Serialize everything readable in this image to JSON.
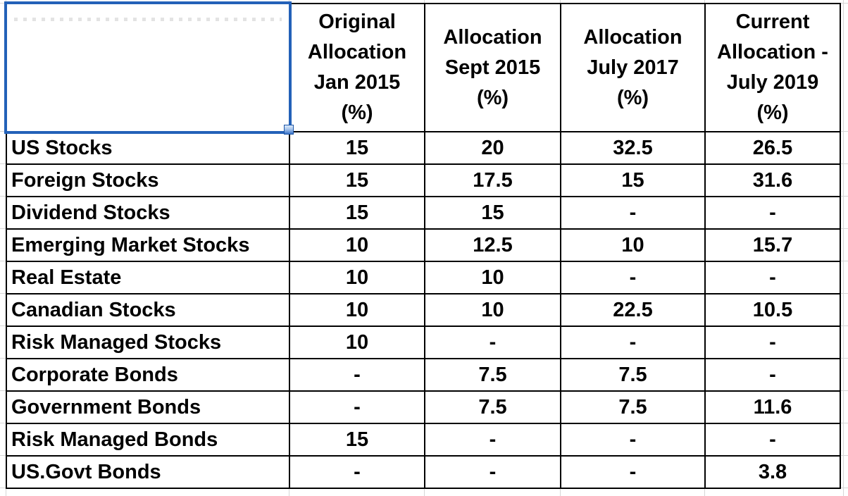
{
  "table": {
    "corner_label": "",
    "columns": [
      "Original\nAllocation\nJan 2015\n(%)",
      "Allocation\nSept 2015\n(%)",
      "Allocation\nJuly 2017\n(%)",
      "Current\nAllocation -\nJuly 2019\n(%)"
    ],
    "rows": [
      {
        "label": "US Stocks",
        "values": [
          "15",
          "20",
          "32.5",
          "26.5"
        ]
      },
      {
        "label": "Foreign Stocks",
        "values": [
          "15",
          "17.5",
          "15",
          "31.6"
        ]
      },
      {
        "label": "Dividend Stocks",
        "values": [
          "15",
          "15",
          "-",
          "-"
        ]
      },
      {
        "label": "Emerging Market Stocks",
        "values": [
          "10",
          "12.5",
          "10",
          "15.7"
        ]
      },
      {
        "label": "Real Estate",
        "values": [
          "10",
          "10",
          "-",
          "-"
        ]
      },
      {
        "label": "Canadian Stocks",
        "values": [
          "10",
          "10",
          "22.5",
          "10.5"
        ]
      },
      {
        "label": "Risk Managed Stocks",
        "values": [
          "10",
          "-",
          "-",
          "-"
        ]
      },
      {
        "label": "Corporate Bonds",
        "values": [
          "-",
          "7.5",
          "7.5",
          "-"
        ]
      },
      {
        "label": "Government Bonds",
        "values": [
          "-",
          "7.5",
          "7.5",
          "11.6"
        ]
      },
      {
        "label": "Risk Managed Bonds",
        "values": [
          "15",
          "-",
          "-",
          "-"
        ]
      },
      {
        "label": "US.Govt Bonds",
        "values": [
          "-",
          "-",
          "-",
          "3.8"
        ]
      }
    ]
  },
  "colors": {
    "selection_blue": "#2361b8",
    "gridline_gray": "#d6d6d6",
    "table_border_black": "#000000"
  }
}
